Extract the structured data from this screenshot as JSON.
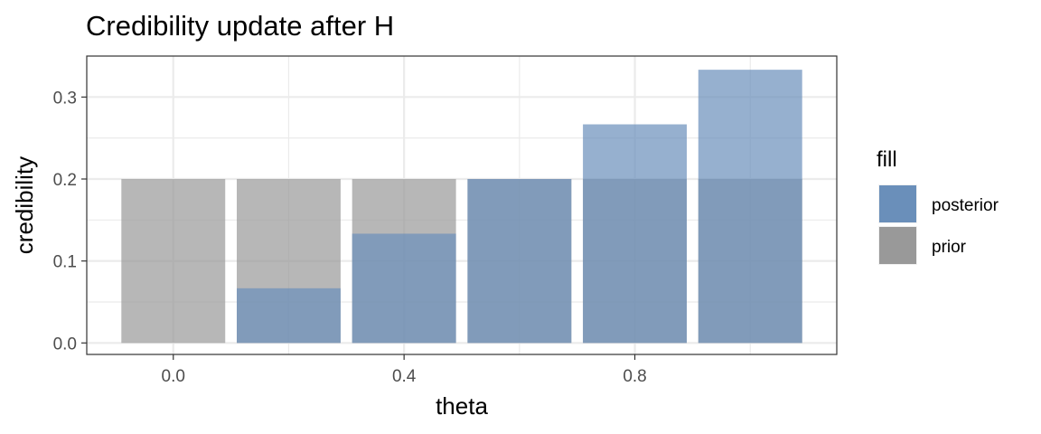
{
  "chart_data": {
    "type": "bar",
    "title": "Credibility update after H",
    "xlabel": "theta",
    "ylabel": "credibility",
    "x": [
      0.0,
      0.2,
      0.4,
      0.6,
      0.8,
      1.0
    ],
    "bar_width": 0.18,
    "series": [
      {
        "name": "prior",
        "values": [
          0.2,
          0.2,
          0.2,
          0.2,
          0.2,
          0.2
        ],
        "color": "#999999"
      },
      {
        "name": "posterior",
        "values": [
          0.0,
          0.0667,
          0.1333,
          0.2,
          0.2667,
          0.3333
        ],
        "color": "#6a8fba"
      }
    ],
    "xlim": [
      -0.15,
      1.15
    ],
    "ylim": [
      -0.014,
      0.35
    ],
    "x_ticks": [
      0.0,
      0.4,
      0.8
    ],
    "x_tick_labels": [
      "0.0",
      "0.4",
      "0.8"
    ],
    "x_minor_ticks": [
      0.2,
      0.6,
      1.0
    ],
    "y_ticks": [
      0.0,
      0.1,
      0.2,
      0.3
    ],
    "y_tick_labels": [
      "0.0",
      "0.1",
      "0.2",
      "0.3"
    ],
    "y_minor_ticks": [
      0.05,
      0.15,
      0.25
    ],
    "grid": true,
    "legend": {
      "title": "fill",
      "position": "right",
      "entries": [
        {
          "label": "posterior",
          "color": "#6a8fba"
        },
        {
          "label": "prior",
          "color": "#999999"
        }
      ]
    }
  }
}
